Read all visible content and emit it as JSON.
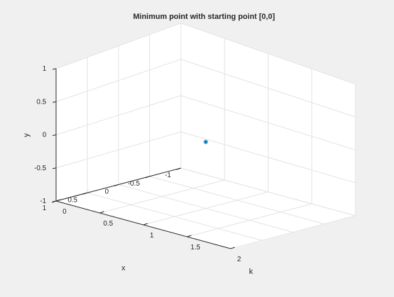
{
  "chart_data": {
    "type": "scatter",
    "title": "Minimum point with starting point [0,0]",
    "xlabel": "k",
    "ylabel": "x",
    "zlabel": "y",
    "xlim": [
      0,
      2
    ],
    "ylim": [
      -1,
      1
    ],
    "zlim": [
      -1,
      1
    ],
    "xticks": [
      "0",
      "0.5",
      "1",
      "1.5",
      "2"
    ],
    "yticks": [
      "1",
      "0.5",
      "0",
      "-0.5",
      "-1"
    ],
    "zticks": [
      "-1",
      "-0.5",
      "0",
      "0.5",
      "1"
    ],
    "grid": true,
    "marker": "*",
    "marker_color": "#0072bd",
    "points": [
      {
        "x": 1,
        "y": 0,
        "z": 0
      }
    ]
  }
}
